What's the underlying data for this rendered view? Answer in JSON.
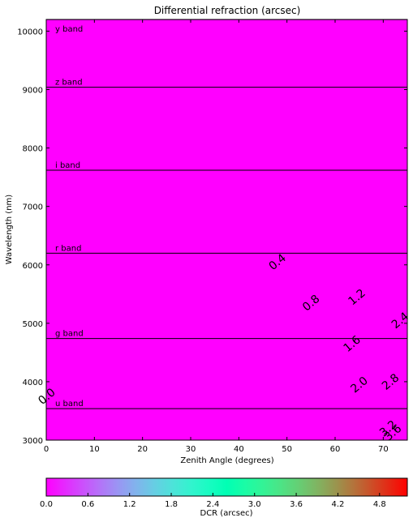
{
  "chart_data": {
    "type": "heatmap",
    "title": "Differential refraction (arcsec)",
    "xlabel": "Zenith Angle (degrees)",
    "ylabel": "Wavelength (nm)",
    "xlim": [
      0,
      75
    ],
    "ylim": [
      3000,
      10200
    ],
    "x_ticks": [
      "0",
      "10",
      "20",
      "30",
      "40",
      "50",
      "60",
      "70"
    ],
    "y_ticks": [
      "3000",
      "4000",
      "5000",
      "6000",
      "7000",
      "8000",
      "9000",
      "10000"
    ],
    "colormap": "rainbow",
    "colorbar": {
      "label": "DCR (arcsec)",
      "range": [
        0,
        5.2
      ],
      "ticks": [
        "0.0",
        "0.6",
        "1.2",
        "1.8",
        "2.4",
        "3.0",
        "3.6",
        "4.2",
        "4.8"
      ]
    },
    "contour_interval": 0.2,
    "contour_labels": [
      {
        "text": "0.4",
        "x": 48.5,
        "y": 6000
      },
      {
        "text": "0.8",
        "x": 55.5,
        "y": 5300
      },
      {
        "text": "1.2",
        "x": 65.0,
        "y": 5400
      },
      {
        "text": "1.6",
        "x": 64.0,
        "y": 4600
      },
      {
        "text": "2.0",
        "x": 65.5,
        "y": 3900
      },
      {
        "text": "2.4",
        "x": 74.0,
        "y": 5000
      },
      {
        "text": "2.8",
        "x": 72.0,
        "y": 3950
      },
      {
        "text": "3.2",
        "x": 71.5,
        "y": 3150
      },
      {
        "text": "3.6",
        "x": 72.5,
        "y": 3080
      },
      {
        "text": "0.0",
        "x": 0.6,
        "y": 3700
      }
    ],
    "bands": [
      {
        "name": "u band",
        "wavelength": 3540
      },
      {
        "name": "g band",
        "wavelength": 4740
      },
      {
        "name": "r band",
        "wavelength": 6200
      },
      {
        "name": "i band",
        "wavelength": 7620
      },
      {
        "name": "z band",
        "wavelength": 9040
      },
      {
        "name": "y band",
        "wavelength": 10200
      }
    ],
    "colors": {
      "low": "#7f00ff",
      "mid": "#00b4ec",
      "high": "#ff0000",
      "line": "#000000"
    }
  }
}
